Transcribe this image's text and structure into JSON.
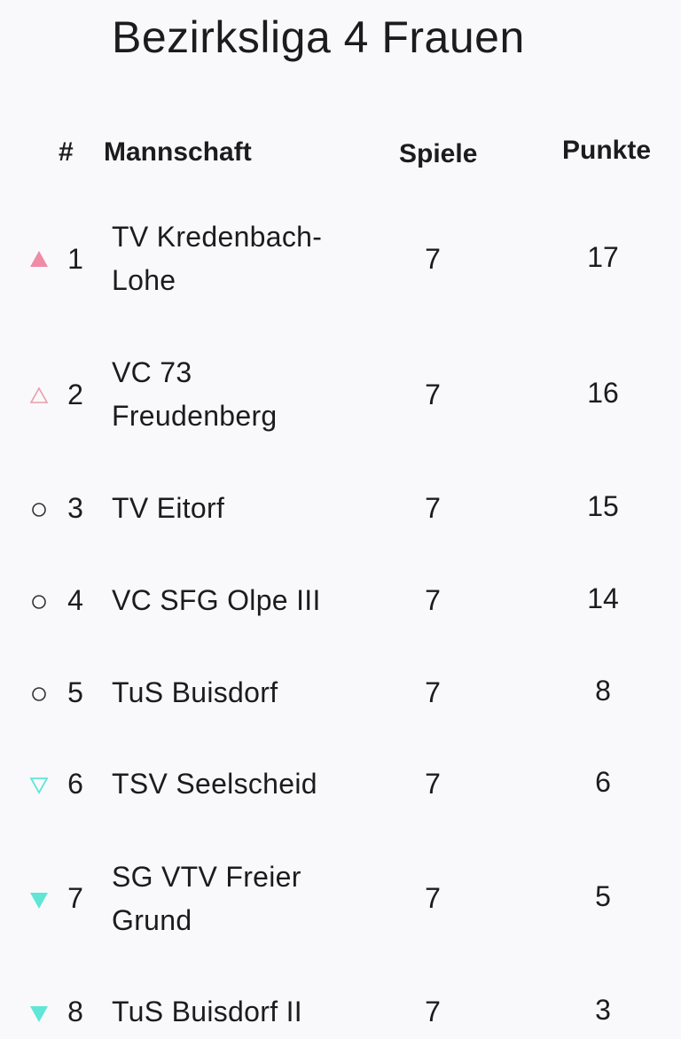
{
  "title": "Bezirksliga 4 Frauen",
  "columns": {
    "rank": "#",
    "team": "Mannschaft",
    "games": "Spiele",
    "points": "Punkte"
  },
  "colors": {
    "up": "#f08aa5",
    "down": "#5fe6d6",
    "neutral": "#333333"
  },
  "rows": [
    {
      "rank": "1",
      "team_line1": "TV Kredenbach-",
      "team_line2": "Lohe",
      "games": "7",
      "points": "17",
      "trend": "up-filled-icon"
    },
    {
      "rank": "2",
      "team_line1": "VC 73",
      "team_line2": "Freudenberg",
      "games": "7",
      "points": "16",
      "trend": "up-outline-icon"
    },
    {
      "rank": "3",
      "team_line1": "TV Eitorf",
      "team_line2": "",
      "games": "7",
      "points": "15",
      "trend": "circle-icon"
    },
    {
      "rank": "4",
      "team_line1": "VC SFG Olpe III",
      "team_line2": "",
      "games": "7",
      "points": "14",
      "trend": "circle-icon"
    },
    {
      "rank": "5",
      "team_line1": "TuS Buisdorf",
      "team_line2": "",
      "games": "7",
      "points": "8",
      "trend": "circle-icon"
    },
    {
      "rank": "6",
      "team_line1": "TSV Seelscheid",
      "team_line2": "",
      "games": "7",
      "points": "6",
      "trend": "down-outline-icon"
    },
    {
      "rank": "7",
      "team_line1": "SG VTV Freier",
      "team_line2": "Grund",
      "games": "7",
      "points": "5",
      "trend": "down-filled-icon"
    },
    {
      "rank": "8",
      "team_line1": "TuS Buisdorf II",
      "team_line2": "",
      "games": "7",
      "points": "3",
      "trend": "down-filled-icon"
    }
  ]
}
